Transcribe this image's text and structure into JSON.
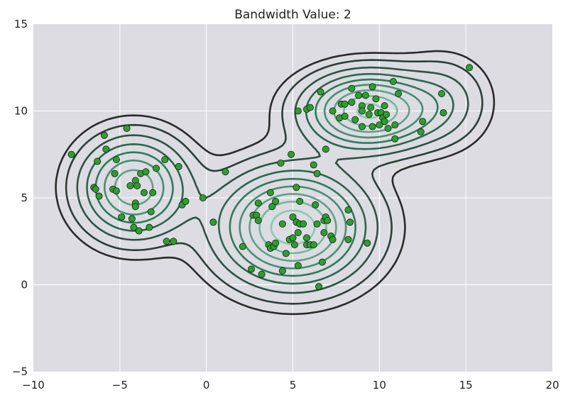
{
  "chart_data": {
    "type": "scatter",
    "title": "Bandwidth Value: 2",
    "xlabel": "",
    "ylabel": "",
    "xlim": [
      -10,
      20
    ],
    "ylim": [
      -5,
      15
    ],
    "x_ticks": [
      -10,
      -5,
      0,
      5,
      10,
      15,
      20
    ],
    "y_ticks": [
      -5,
      0,
      5,
      10,
      15
    ],
    "x_tick_labels": [
      "−10",
      "−5",
      "0",
      "5",
      "10",
      "15",
      "20"
    ],
    "y_tick_labels": [
      "−5",
      "0",
      "5",
      "10",
      "15"
    ],
    "grid": true,
    "legend": "none",
    "colors": {
      "plot_background": "#dcdce2",
      "grid": "#ffffff",
      "points": "#2ca02c",
      "point_edge": "#1a1a1a",
      "contour_outer": "#2b2b2b",
      "contour_mid": "#2f7a5a",
      "contour_inner": "#8ec8b4"
    },
    "points": [
      [
        -7.8,
        7.5
      ],
      [
        -6.5,
        5.6
      ],
      [
        -6.4,
        5.5
      ],
      [
        -6.3,
        7.1
      ],
      [
        -6.2,
        5.1
      ],
      [
        -5.9,
        8.6
      ],
      [
        -5.8,
        7.8
      ],
      [
        -5.4,
        5.5
      ],
      [
        -5.3,
        6.4
      ],
      [
        -5.2,
        7.2
      ],
      [
        -5.2,
        5.4
      ],
      [
        -4.9,
        3.9
      ],
      [
        -4.6,
        9.0
      ],
      [
        -4.4,
        5.7
      ],
      [
        -4.3,
        3.8
      ],
      [
        -4.2,
        3.3
      ],
      [
        -4.1,
        4.7
      ],
      [
        -4.1,
        4.5
      ],
      [
        -4.1,
        6.0
      ],
      [
        -4.0,
        5.7
      ],
      [
        -3.9,
        3.1
      ],
      [
        -3.8,
        6.4
      ],
      [
        -3.6,
        5.3
      ],
      [
        -3.5,
        6.5
      ],
      [
        -3.3,
        3.3
      ],
      [
        -3.2,
        4.2
      ],
      [
        -3.1,
        5.3
      ],
      [
        -2.9,
        6.7
      ],
      [
        -2.4,
        7.2
      ],
      [
        -2.3,
        2.5
      ],
      [
        -1.9,
        2.5
      ],
      [
        -1.6,
        6.8
      ],
      [
        -1.4,
        4.6
      ],
      [
        -1.2,
        4.8
      ],
      [
        -0.2,
        5.0
      ],
      [
        0.4,
        3.6
      ],
      [
        1.1,
        6.5
      ],
      [
        2.1,
        2.2
      ],
      [
        2.6,
        0.9
      ],
      [
        2.7,
        4.0
      ],
      [
        2.9,
        4.0
      ],
      [
        3.0,
        4.7
      ],
      [
        3.0,
        3.7
      ],
      [
        3.2,
        0.6
      ],
      [
        3.6,
        2.3
      ],
      [
        3.7,
        5.3
      ],
      [
        3.7,
        2.1
      ],
      [
        3.8,
        4.5
      ],
      [
        3.9,
        2.2
      ],
      [
        4.0,
        2.4
      ],
      [
        4.0,
        4.8
      ],
      [
        4.3,
        7.0
      ],
      [
        4.4,
        0.8
      ],
      [
        4.4,
        3.5
      ],
      [
        4.6,
        1.8
      ],
      [
        4.8,
        2.6
      ],
      [
        4.9,
        7.5
      ],
      [
        5.0,
        3.9
      ],
      [
        5.0,
        2.7
      ],
      [
        5.1,
        2.3
      ],
      [
        5.2,
        3.6
      ],
      [
        5.2,
        5.6
      ],
      [
        5.3,
        1.1
      ],
      [
        5.3,
        3.0
      ],
      [
        5.3,
        10.0
      ],
      [
        5.4,
        3.5
      ],
      [
        5.4,
        4.8
      ],
      [
        5.6,
        3.5
      ],
      [
        5.8,
        2.3
      ],
      [
        5.8,
        2.7
      ],
      [
        5.8,
        10.1
      ],
      [
        6.0,
        10.2
      ],
      [
        6.0,
        2.3
      ],
      [
        6.2,
        2.3
      ],
      [
        6.2,
        6.9
      ],
      [
        6.3,
        4.6
      ],
      [
        6.4,
        3.5
      ],
      [
        6.4,
        6.4
      ],
      [
        6.5,
        -0.1
      ],
      [
        6.6,
        11.1
      ],
      [
        6.7,
        1.3
      ],
      [
        6.8,
        3.7
      ],
      [
        6.8,
        3.0
      ],
      [
        6.9,
        7.8
      ],
      [
        6.9,
        3.9
      ],
      [
        7.0,
        3.7
      ],
      [
        7.2,
        2.8
      ],
      [
        7.3,
        2.6
      ],
      [
        7.3,
        10.0
      ],
      [
        7.7,
        9.6
      ],
      [
        7.8,
        10.4
      ],
      [
        8.0,
        10.4
      ],
      [
        8.0,
        9.7
      ],
      [
        8.2,
        2.6
      ],
      [
        8.2,
        4.3
      ],
      [
        8.3,
        3.6
      ],
      [
        8.4,
        10.5
      ],
      [
        8.4,
        11.3
      ],
      [
        8.6,
        9.5
      ],
      [
        8.8,
        10.9
      ],
      [
        9.0,
        10.3
      ],
      [
        9.0,
        10.0
      ],
      [
        9.0,
        9.1
      ],
      [
        9.2,
        10.9
      ],
      [
        9.3,
        2.4
      ],
      [
        9.4,
        9.8
      ],
      [
        9.5,
        10.2
      ],
      [
        9.6,
        9.1
      ],
      [
        9.6,
        11.4
      ],
      [
        9.8,
        10.7
      ],
      [
        9.9,
        9.9
      ],
      [
        10.0,
        9.2
      ],
      [
        10.1,
        9.9
      ],
      [
        10.2,
        9.6
      ],
      [
        10.2,
        9.6
      ],
      [
        10.3,
        10.3
      ],
      [
        10.3,
        9.4
      ],
      [
        10.4,
        9.8
      ],
      [
        10.5,
        9.0
      ],
      [
        10.8,
        11.7
      ],
      [
        10.9,
        8.4
      ],
      [
        10.9,
        9.2
      ],
      [
        11.1,
        11.0
      ],
      [
        12.4,
        8.8
      ],
      [
        12.5,
        9.4
      ],
      [
        13.6,
        11.0
      ],
      [
        13.7,
        9.9
      ],
      [
        15.2,
        12.5
      ]
    ],
    "density_model": {
      "bandwidth": 2,
      "components": [
        {
          "center": [
            -4.2,
            5.6
          ],
          "spread": [
            1.9,
            1.75
          ],
          "weight": 1.0
        },
        {
          "center": [
            5.0,
            3.3
          ],
          "spread": [
            2.6,
            2.0
          ],
          "weight": 1.35
        },
        {
          "center": [
            9.4,
            10.0
          ],
          "spread": [
            2.3,
            1.35
          ],
          "weight": 1.25
        },
        {
          "center": [
            13.8,
            10.6
          ],
          "spread": [
            1.6,
            1.6
          ],
          "weight": 0.25
        }
      ],
      "levels": [
        0.045,
        0.09,
        0.17,
        0.27,
        0.38,
        0.5,
        0.63,
        0.76,
        0.89
      ]
    }
  }
}
